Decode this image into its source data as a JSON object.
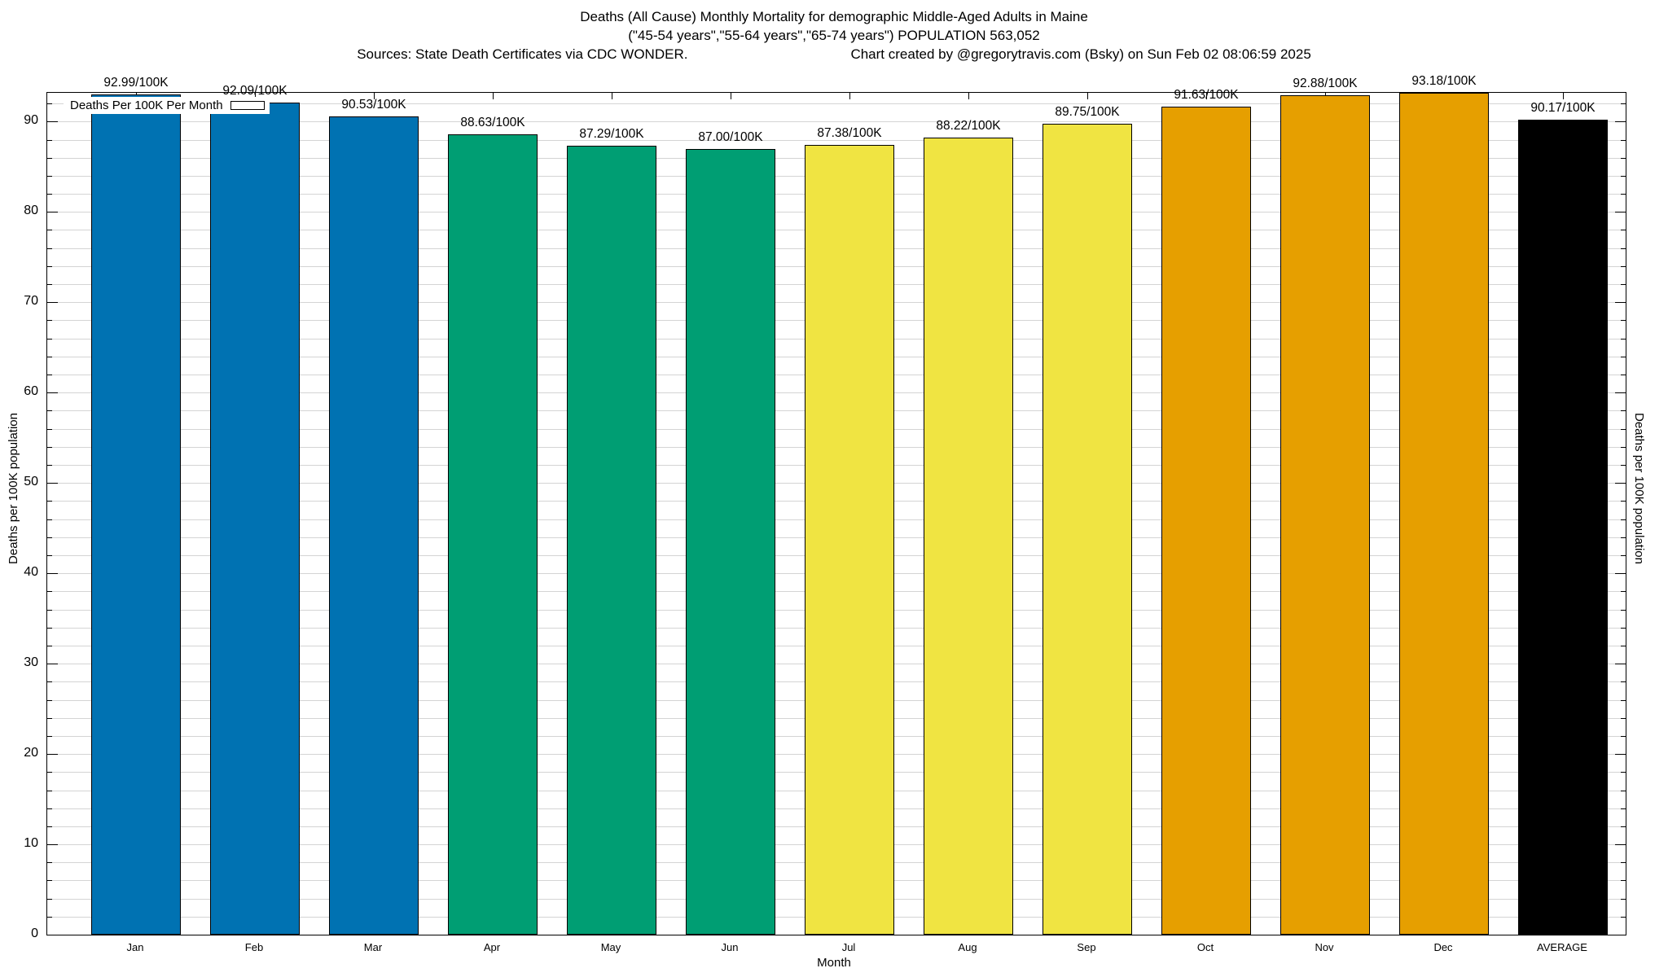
{
  "title": {
    "line1": "Deaths (All Cause) Monthly Mortality for demographic Middle-Aged Adults in Maine",
    "line2": "(\"45-54 years\",\"55-64 years\",\"65-74 years\") POPULATION 563,052",
    "line3_left": "Sources: State Death Certificates via CDC WONDER.",
    "line3_right": "Chart created by @gregorytravis.com (Bsky) on Sun Feb 02 08:06:59 2025"
  },
  "legend": {
    "label": "Deaths Per 100K Per Month",
    "swatch_color": "#0072B2",
    "position": "top-left"
  },
  "axes": {
    "x_label": "Month",
    "y_label_left": "Deaths per 100K population",
    "y_label_right": "Deaths per 100K population",
    "y_major_ticks": [
      0,
      10,
      20,
      30,
      40,
      50,
      60,
      70,
      80,
      90
    ],
    "y_minor_step": 2,
    "grid": true,
    "grid_color": "#d4d4d4"
  },
  "chart_data": {
    "type": "bar",
    "title": "Deaths (All Cause) Monthly Mortality for demographic Middle-Aged Adults in Maine",
    "xlabel": "Month",
    "ylabel": "Deaths per 100K population",
    "ylim": [
      0,
      93.18
    ],
    "legend_position": "top-left",
    "categories": [
      "Jan",
      "Feb",
      "Mar",
      "Apr",
      "May",
      "Jun",
      "Jul",
      "Aug",
      "Sep",
      "Oct",
      "Nov",
      "Dec",
      "AVERAGE"
    ],
    "values": [
      92.99,
      92.09,
      90.53,
      88.63,
      87.29,
      87.0,
      87.38,
      88.22,
      89.75,
      91.63,
      92.88,
      93.18,
      90.17
    ],
    "bar_labels": [
      "92.99/100K",
      "92.09/100K",
      "90.53/100K",
      "88.63/100K",
      "87.29/100K",
      "87.00/100K",
      "87.38/100K",
      "88.22/100K",
      "89.75/100K",
      "91.63/100K",
      "92.88/100K",
      "93.18/100K",
      "90.17/100K"
    ],
    "bar_colors": [
      "#0072B2",
      "#0072B2",
      "#0072B2",
      "#009E73",
      "#009E73",
      "#009E73",
      "#F0E442",
      "#F0E442",
      "#F0E442",
      "#E69F00",
      "#E69F00",
      "#E69F00",
      "#000000"
    ],
    "series_name": "Deaths Per 100K Per Month"
  },
  "colors": {
    "quarter1_blue": "#0072B2",
    "quarter2_green": "#009E73",
    "quarter3_yellow": "#F0E442",
    "quarter4_orange": "#E69F00",
    "average_black": "#000000",
    "grid": "#d4d4d4",
    "background": "#ffffff"
  }
}
